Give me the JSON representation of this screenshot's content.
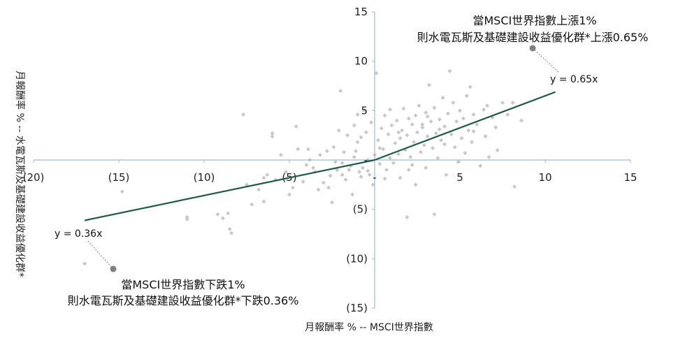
{
  "chart_data": {
    "type": "scatter",
    "xlabel": "月報酬率 % -- MSCI世界指數",
    "ylabel": "月報酬率 % -- 水電瓦斯及基礎建設收益優化群*",
    "xlim": [
      -20,
      15
    ],
    "ylim": [
      -15,
      15
    ],
    "x_ticks": [
      -20,
      -15,
      -10,
      -5,
      0,
      5,
      10,
      15
    ],
    "x_tick_labels": [
      "(20)",
      "(15)",
      "(10)",
      "(5)",
      "-",
      "5",
      "10",
      "15"
    ],
    "y_ticks": [
      15,
      10,
      5,
      0,
      -5,
      -10,
      -15
    ],
    "y_tick_labels": [
      "15",
      "10",
      "5",
      "-",
      "(5)",
      "(10)",
      "(15)"
    ],
    "colors": {
      "points": "#c8c8c8",
      "trend": "#1e5b46",
      "axis": "#9fb7d6",
      "callout": "#808080"
    },
    "points": [
      [
        -17,
        -10.5
      ],
      [
        -14.8,
        -3.2
      ],
      [
        -11,
        -6
      ],
      [
        -11,
        -5.8
      ],
      [
        -9.2,
        -5.5
      ],
      [
        -8.9,
        -5.9
      ],
      [
        -8.6,
        -5.4
      ],
      [
        -8.5,
        -7
      ],
      [
        -8.4,
        -7.4
      ],
      [
        -7.7,
        4.6
      ],
      [
        -7.5,
        -2.5
      ],
      [
        -7.2,
        -4.5
      ],
      [
        -6.8,
        -3
      ],
      [
        -6.5,
        -1.8
      ],
      [
        -6.5,
        -4.2
      ],
      [
        -6.3,
        -1.5
      ],
      [
        -6,
        2.7
      ],
      [
        -6,
        2.4
      ],
      [
        -5.8,
        -2
      ],
      [
        -5.5,
        0.5
      ],
      [
        -5.2,
        -1.2
      ],
      [
        -5,
        -3.5
      ],
      [
        -4.8,
        -2.8
      ],
      [
        -4.6,
        3.4
      ],
      [
        -4.5,
        1.1
      ],
      [
        -4.2,
        -2.2
      ],
      [
        -4,
        -0.5
      ],
      [
        -3.8,
        0
      ],
      [
        -3.6,
        -0.8
      ],
      [
        -3.5,
        -1.2
      ],
      [
        -3.3,
        -3
      ],
      [
        -3.2,
        0.5
      ],
      [
        -3,
        -2.3
      ],
      [
        -2.8,
        0.9
      ],
      [
        -2.6,
        -1.6
      ],
      [
        -2.5,
        -4.3
      ],
      [
        -2.4,
        1.3
      ],
      [
        -2.3,
        -0.2
      ],
      [
        -2.2,
        -1
      ],
      [
        -2.1,
        3
      ],
      [
        -2,
        7
      ],
      [
        -1.9,
        -1.5
      ],
      [
        -1.8,
        0.8
      ],
      [
        -1.7,
        -2
      ],
      [
        -1.6,
        2.5
      ],
      [
        -1.5,
        -1
      ],
      [
        -1.4,
        -0.6
      ],
      [
        -1.3,
        -3.5
      ],
      [
        -1.2,
        3.5
      ],
      [
        -1.2,
        0.3
      ],
      [
        -1,
        4.6
      ],
      [
        -1,
        1.8
      ],
      [
        -0.9,
        -1.2
      ],
      [
        -0.8,
        2.3
      ],
      [
        -0.7,
        -0.8
      ],
      [
        -0.6,
        5
      ],
      [
        -0.5,
        2.8
      ],
      [
        -0.4,
        0
      ],
      [
        -0.3,
        -1.5
      ],
      [
        -0.2,
        3.8
      ],
      [
        -0.1,
        -2.5
      ],
      [
        0,
        0.5
      ],
      [
        0.1,
        8.8
      ],
      [
        0.2,
        2
      ],
      [
        0.3,
        -0.4
      ],
      [
        0.4,
        3.2
      ],
      [
        0.5,
        1.1
      ],
      [
        0.6,
        4.5
      ],
      [
        0.7,
        -1
      ],
      [
        0.8,
        2.6
      ],
      [
        0.9,
        0.2
      ],
      [
        1,
        3.5
      ],
      [
        1.1,
        -0.3
      ],
      [
        1.2,
        1.7
      ],
      [
        1.3,
        4
      ],
      [
        1.4,
        0.6
      ],
      [
        1.5,
        2.2
      ],
      [
        1.5,
        -1.8
      ],
      [
        1.6,
        3
      ],
      [
        1.7,
        5.2
      ],
      [
        1.8,
        1
      ],
      [
        1.9,
        2.5
      ],
      [
        2,
        -1
      ],
      [
        2,
        4.2
      ],
      [
        2.1,
        0.3
      ],
      [
        2.2,
        3.6
      ],
      [
        2.3,
        1.8
      ],
      [
        2.4,
        -2.5
      ],
      [
        2.5,
        2.8
      ],
      [
        2.6,
        5.5
      ],
      [
        2.7,
        0.8
      ],
      [
        2.8,
        3.3
      ],
      [
        2.9,
        1.5
      ],
      [
        3,
        4.8
      ],
      [
        3,
        -0.8
      ],
      [
        3.1,
        2.4
      ],
      [
        3.2,
        7.6
      ],
      [
        3.3,
        3.9
      ],
      [
        3.4,
        1.2
      ],
      [
        3.5,
        5.3
      ],
      [
        3.6,
        2.7
      ],
      [
        3.7,
        0.2
      ],
      [
        3.8,
        4.1
      ],
      [
        3.9,
        2
      ],
      [
        4,
        6.3
      ],
      [
        4.1,
        3.4
      ],
      [
        4.2,
        -1.5
      ],
      [
        4.3,
        4.7
      ],
      [
        4.4,
        9
      ],
      [
        4.5,
        2.6
      ],
      [
        4.6,
        5.8
      ],
      [
        4.7,
        1.3
      ],
      [
        4.8,
        3.9
      ],
      [
        4.9,
        -0.2
      ],
      [
        5,
        5
      ],
      [
        5.1,
        2.2
      ],
      [
        5.2,
        4.2
      ],
      [
        5.3,
        0.7
      ],
      [
        5.4,
        6.5
      ],
      [
        5.5,
        3
      ],
      [
        5.6,
        7.4
      ],
      [
        5.7,
        1.8
      ],
      [
        5.8,
        4.6
      ],
      [
        6,
        3.6
      ],
      [
        6.2,
        -0.6
      ],
      [
        6.4,
        5.1
      ],
      [
        6.5,
        2.4
      ],
      [
        6.7,
        0.3
      ],
      [
        6.9,
        4.3
      ],
      [
        7.1,
        3.3
      ],
      [
        7.2,
        1
      ],
      [
        7.5,
        5.8
      ],
      [
        7.8,
        4.6
      ],
      [
        8.1,
        5.8
      ],
      [
        8.2,
        -2.7
      ],
      [
        8.6,
        4
      ],
      [
        -1.9,
        -0.3
      ],
      [
        -0.8,
        -1.7
      ],
      [
        0.3,
        1.2
      ],
      [
        1.4,
        2.8
      ],
      [
        2.2,
        -0.5
      ],
      [
        -3.9,
        1.1
      ],
      [
        1.9,
        -5.8
      ],
      [
        3.5,
        -5.5
      ],
      [
        -2.7,
        -2.8
      ],
      [
        -0.4,
        -1.1
      ],
      [
        0.6,
        -1.9
      ],
      [
        2.8,
        3.6
      ],
      [
        3.1,
        4.4
      ],
      [
        4.1,
        1.6
      ],
      [
        5.8,
        2.9
      ],
      [
        6.6,
        5.5
      ],
      [
        -1.1,
        0.9
      ],
      [
        0.9,
        5.1
      ],
      [
        2.4,
        4.5
      ],
      [
        3.8,
        3.1
      ]
    ],
    "trendline_segments": [
      {
        "x": [
          -17,
          0
        ],
        "y": [
          -6.12,
          0
        ],
        "equation": "y = 0.36x"
      },
      {
        "x": [
          0,
          10.6
        ],
        "y": [
          0,
          6.89
        ],
        "equation": "y = 0.65x"
      }
    ],
    "annotations": {
      "upper": {
        "equation": "y = 0.65x",
        "line1": "當MSCI世界指數上漲1%",
        "line2": "則水電瓦斯及基礎建設收益優化群*上漲0.65%"
      },
      "lower": {
        "equation": "y = 0.36x",
        "line1": "當MSCI世界指數下跌1%",
        "line2": "則水電瓦斯及基礎建設收益優化群*下跌0.36%"
      }
    }
  }
}
